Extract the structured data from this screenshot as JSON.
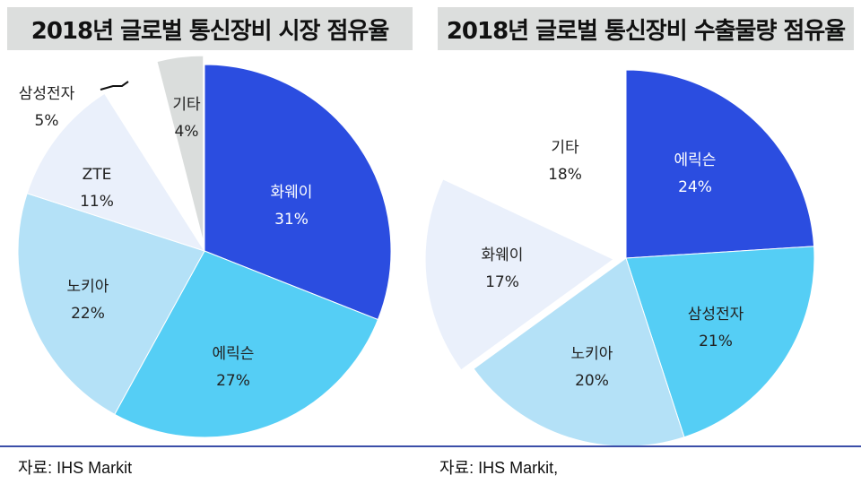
{
  "titles": {
    "left": "2018년 글로벌 통신장비 시장 점유율",
    "right": "2018년 글로벌 통신장비 수출물량 점유율"
  },
  "sources": {
    "left": "자료: IHS Markit",
    "right": "자료: IHS Markit,"
  },
  "chart_data": [
    {
      "type": "pie",
      "title": "2018년 글로벌 통신장비 시장 점유율",
      "slices": [
        {
          "name": "화웨이",
          "value": 31,
          "label": "31%",
          "color": "#2b4de0"
        },
        {
          "name": "에릭슨",
          "value": 27,
          "label": "27%",
          "color": "#55cef5"
        },
        {
          "name": "노키아",
          "value": 22,
          "label": "22%",
          "color": "#b4e1f7"
        },
        {
          "name": "ZTE",
          "value": 11,
          "label": "11%",
          "color": "#eaf0fb"
        },
        {
          "name": "삼성전자",
          "value": 5,
          "label": "5%",
          "color": "#ffffff"
        },
        {
          "name": "기타",
          "value": 4,
          "label": "4%",
          "color": "#dadddc"
        }
      ]
    },
    {
      "type": "pie",
      "title": "2018년 글로벌 통신장비 수출물량 점유율",
      "slices": [
        {
          "name": "에릭슨",
          "value": 24,
          "label": "24%",
          "color": "#2b4de0"
        },
        {
          "name": "삼성전자",
          "value": 21,
          "label": "21%",
          "color": "#55cef5"
        },
        {
          "name": "노키아",
          "value": 20,
          "label": "20%",
          "color": "#b4e1f7"
        },
        {
          "name": "화웨이",
          "value": 17,
          "label": "17%",
          "color": "#eaf0fb"
        },
        {
          "name": "기타",
          "value": 18,
          "label": "18%",
          "color": "#ffffff"
        }
      ]
    }
  ]
}
